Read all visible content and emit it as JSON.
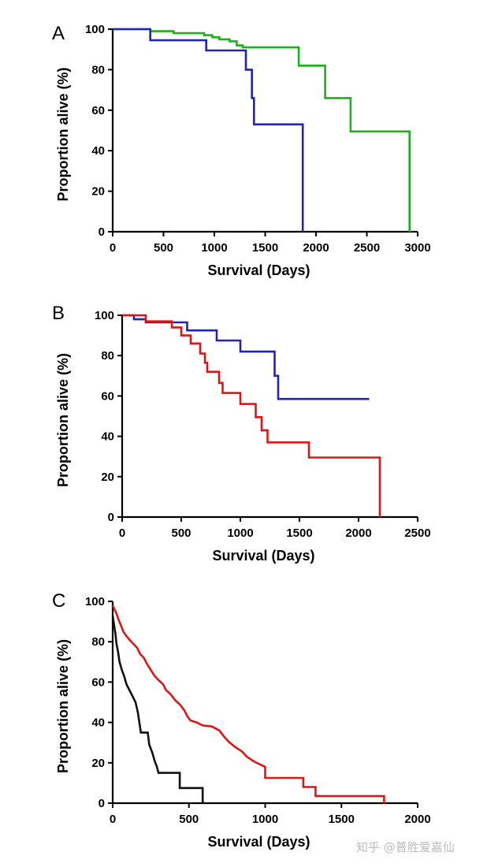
{
  "chart_data": [
    {
      "type": "line",
      "panel_label": "A",
      "xlabel": "Survival (Days)",
      "ylabel": "Proportion alive (%)",
      "xlim": [
        0,
        3000
      ],
      "ylim": [
        0,
        100
      ],
      "xticks": [
        0,
        500,
        1000,
        1500,
        2000,
        2500,
        3000
      ],
      "yticks": [
        0,
        20,
        40,
        60,
        80,
        100
      ],
      "step": true,
      "grid": false,
      "series": [
        {
          "color": "#1db01d",
          "points": [
            [
              0,
              100
            ],
            [
              370,
              100
            ],
            [
              370,
              99
            ],
            [
              600,
              99
            ],
            [
              600,
              98
            ],
            [
              900,
              98
            ],
            [
              900,
              97
            ],
            [
              980,
              97
            ],
            [
              980,
              96
            ],
            [
              1050,
              96
            ],
            [
              1050,
              95
            ],
            [
              1150,
              95
            ],
            [
              1150,
              94
            ],
            [
              1220,
              94
            ],
            [
              1220,
              92
            ],
            [
              1280,
              92
            ],
            [
              1280,
              91
            ],
            [
              1830,
              91
            ],
            [
              1830,
              82
            ],
            [
              2090,
              82
            ],
            [
              2090,
              66
            ],
            [
              2340,
              66
            ],
            [
              2340,
              49.5
            ],
            [
              2920,
              49.5
            ],
            [
              2920,
              0
            ]
          ]
        },
        {
          "color": "#2323b4",
          "points": [
            [
              0,
              100
            ],
            [
              370,
              100
            ],
            [
              370,
              94.5
            ],
            [
              920,
              94.5
            ],
            [
              920,
              89.5
            ],
            [
              1310,
              89.5
            ],
            [
              1310,
              80
            ],
            [
              1370,
              80
            ],
            [
              1370,
              66
            ],
            [
              1390,
              66
            ],
            [
              1390,
              53
            ],
            [
              1870,
              53
            ],
            [
              1870,
              0
            ]
          ]
        }
      ]
    },
    {
      "type": "line",
      "panel_label": "B",
      "xlabel": "Survival (Days)",
      "ylabel": "Proportion alive (%)",
      "xlim": [
        0,
        2500
      ],
      "ylim": [
        0,
        100
      ],
      "xticks": [
        0,
        500,
        1000,
        1500,
        2000,
        2500
      ],
      "yticks": [
        0,
        20,
        40,
        60,
        80,
        100
      ],
      "step": true,
      "grid": false,
      "series": [
        {
          "color": "#2323b4",
          "points": [
            [
              0,
              100
            ],
            [
              100,
              100
            ],
            [
              100,
              98
            ],
            [
              200,
              98
            ],
            [
              200,
              96.5
            ],
            [
              550,
              96.5
            ],
            [
              550,
              92.5
            ],
            [
              800,
              92.5
            ],
            [
              800,
              87.5
            ],
            [
              1000,
              87.5
            ],
            [
              1000,
              82
            ],
            [
              1290,
              82
            ],
            [
              1290,
              70
            ],
            [
              1320,
              70
            ],
            [
              1320,
              58.5
            ],
            [
              2090,
              58.5
            ]
          ]
        },
        {
          "color": "#e01414",
          "points": [
            [
              0,
              100
            ],
            [
              200,
              100
            ],
            [
              200,
              97
            ],
            [
              420,
              97
            ],
            [
              420,
              94
            ],
            [
              500,
              94
            ],
            [
              500,
              90
            ],
            [
              580,
              90
            ],
            [
              580,
              86
            ],
            [
              660,
              86
            ],
            [
              660,
              81
            ],
            [
              700,
              81
            ],
            [
              700,
              76.5
            ],
            [
              720,
              76.5
            ],
            [
              720,
              72
            ],
            [
              820,
              72
            ],
            [
              820,
              66.5
            ],
            [
              850,
              66.5
            ],
            [
              850,
              61.5
            ],
            [
              1000,
              61.5
            ],
            [
              1000,
              56
            ],
            [
              1130,
              56
            ],
            [
              1130,
              49.5
            ],
            [
              1180,
              49.5
            ],
            [
              1180,
              43
            ],
            [
              1230,
              43
            ],
            [
              1230,
              37
            ],
            [
              1580,
              37
            ],
            [
              1580,
              29.5
            ],
            [
              2180,
              29.5
            ],
            [
              2180,
              0
            ]
          ]
        }
      ]
    },
    {
      "type": "line",
      "panel_label": "C",
      "xlabel": "Survival (Days)",
      "ylabel": "Proportion alive (%)",
      "xlim": [
        0,
        2000
      ],
      "ylim": [
        0,
        100
      ],
      "xticks": [
        0,
        500,
        1000,
        1500,
        2000
      ],
      "yticks": [
        0,
        20,
        40,
        60,
        80,
        100
      ],
      "step": true,
      "grid": false,
      "series": [
        {
          "color": "#e01414",
          "points": [
            [
              0,
              98
            ],
            [
              12,
              96
            ],
            [
              25,
              94
            ],
            [
              38,
              91
            ],
            [
              55,
              88
            ],
            [
              70,
              85
            ],
            [
              88,
              83
            ],
            [
              110,
              81
            ],
            [
              135,
              79
            ],
            [
              160,
              77
            ],
            [
              180,
              74
            ],
            [
              205,
              72
            ],
            [
              225,
              69
            ],
            [
              250,
              66
            ],
            [
              275,
              63
            ],
            [
              300,
              61
            ],
            [
              330,
              59
            ],
            [
              350,
              56
            ],
            [
              380,
              54
            ],
            [
              410,
              51
            ],
            [
              440,
              49
            ],
            [
              470,
              46
            ],
            [
              490,
              43
            ],
            [
              510,
              41
            ],
            [
              550,
              40
            ],
            [
              590,
              38.5
            ],
            [
              650,
              38
            ],
            [
              700,
              36
            ],
            [
              730,
              33
            ],
            [
              760,
              30.5
            ],
            [
              800,
              28
            ],
            [
              850,
              25.5
            ],
            [
              880,
              23
            ],
            [
              930,
              20.5
            ],
            [
              1000,
              18
            ],
            [
              1000,
              12.5
            ],
            [
              1250,
              12.5
            ],
            [
              1250,
              8
            ],
            [
              1330,
              8
            ],
            [
              1330,
              3.5
            ],
            [
              1780,
              3.5
            ],
            [
              1780,
              0
            ]
          ]
        },
        {
          "color": "#111111",
          "points": [
            [
              0,
              93
            ],
            [
              10,
              88
            ],
            [
              18,
              84
            ],
            [
              25,
              79
            ],
            [
              35,
              75
            ],
            [
              45,
              70
            ],
            [
              60,
              66
            ],
            [
              75,
              63
            ],
            [
              90,
              59
            ],
            [
              110,
              56
            ],
            [
              130,
              53
            ],
            [
              150,
              50
            ],
            [
              165,
              45
            ],
            [
              185,
              35
            ],
            [
              230,
              35
            ],
            [
              240,
              29
            ],
            [
              260,
              25
            ],
            [
              275,
              21
            ],
            [
              290,
              18
            ],
            [
              300,
              15
            ],
            [
              440,
              15
            ],
            [
              440,
              7.5
            ],
            [
              590,
              7.5
            ],
            [
              590,
              0
            ]
          ]
        }
      ]
    }
  ],
  "watermark": "知乎 @普胜爱嘉仙"
}
